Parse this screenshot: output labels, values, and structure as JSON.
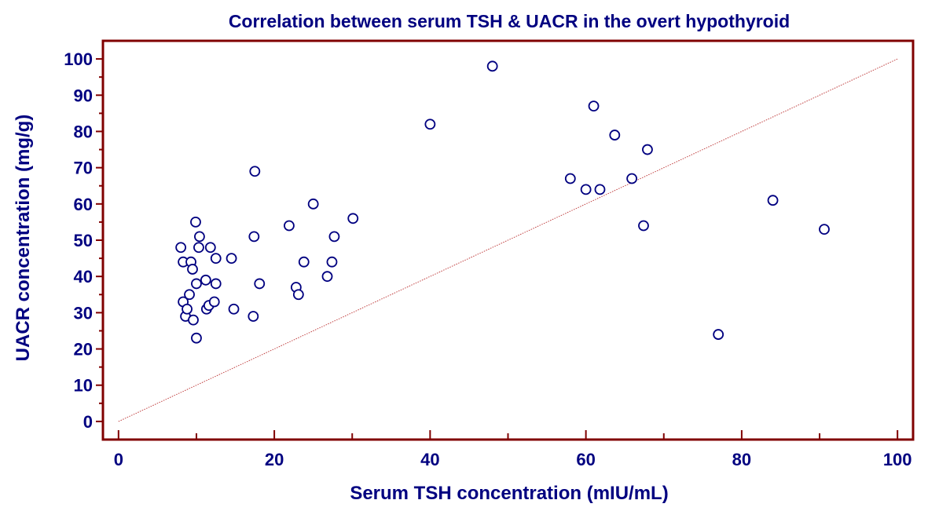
{
  "chart_data": {
    "type": "scatter",
    "title": "Correlation between serum TSH & UACR in the overt hypothyroid",
    "xlabel": "Serum TSH concentration (mIU/mL)",
    "ylabel": "UACR concentration (mg/g)",
    "xlim": [
      -2,
      102
    ],
    "ylim": [
      -5,
      105
    ],
    "x_ticks": [
      0,
      20,
      40,
      60,
      80,
      100
    ],
    "y_ticks": [
      0,
      10,
      20,
      30,
      40,
      50,
      60,
      70,
      80,
      90,
      100
    ],
    "grid": false,
    "legend": "none",
    "reference_line": {
      "from": [
        0,
        0
      ],
      "to": [
        100,
        100
      ],
      "style": "dotted"
    },
    "colors": {
      "axes": "#800000",
      "text": "#000080",
      "markers": "#000080",
      "reference_line": "#c04040"
    },
    "series": [
      {
        "points": [
          {
            "x": 8.0,
            "y": 48
          },
          {
            "x": 8.3,
            "y": 44
          },
          {
            "x": 8.3,
            "y": 33
          },
          {
            "x": 8.6,
            "y": 29
          },
          {
            "x": 8.8,
            "y": 31
          },
          {
            "x": 9.1,
            "y": 35
          },
          {
            "x": 9.3,
            "y": 44
          },
          {
            "x": 9.5,
            "y": 42
          },
          {
            "x": 9.6,
            "y": 28
          },
          {
            "x": 9.9,
            "y": 55
          },
          {
            "x": 10.0,
            "y": 38
          },
          {
            "x": 10.0,
            "y": 23
          },
          {
            "x": 10.3,
            "y": 48
          },
          {
            "x": 10.4,
            "y": 51
          },
          {
            "x": 11.2,
            "y": 39
          },
          {
            "x": 11.3,
            "y": 31
          },
          {
            "x": 11.6,
            "y": 32
          },
          {
            "x": 11.8,
            "y": 48
          },
          {
            "x": 12.3,
            "y": 33
          },
          {
            "x": 12.5,
            "y": 45
          },
          {
            "x": 12.5,
            "y": 38
          },
          {
            "x": 14.5,
            "y": 45
          },
          {
            "x": 14.8,
            "y": 31
          },
          {
            "x": 17.3,
            "y": 29
          },
          {
            "x": 17.4,
            "y": 51
          },
          {
            "x": 17.5,
            "y": 69
          },
          {
            "x": 18.1,
            "y": 38
          },
          {
            "x": 21.9,
            "y": 54
          },
          {
            "x": 22.8,
            "y": 37
          },
          {
            "x": 23.1,
            "y": 35
          },
          {
            "x": 23.8,
            "y": 44
          },
          {
            "x": 25.0,
            "y": 60
          },
          {
            "x": 26.8,
            "y": 40
          },
          {
            "x": 27.4,
            "y": 44
          },
          {
            "x": 27.7,
            "y": 51
          },
          {
            "x": 30.1,
            "y": 56
          },
          {
            "x": 40.0,
            "y": 82
          },
          {
            "x": 48.0,
            "y": 98
          },
          {
            "x": 58.0,
            "y": 67
          },
          {
            "x": 60.0,
            "y": 64
          },
          {
            "x": 61.0,
            "y": 87
          },
          {
            "x": 61.8,
            "y": 64
          },
          {
            "x": 63.7,
            "y": 79
          },
          {
            "x": 65.9,
            "y": 67
          },
          {
            "x": 67.4,
            "y": 54
          },
          {
            "x": 67.9,
            "y": 75
          },
          {
            "x": 77.0,
            "y": 24
          },
          {
            "x": 84.0,
            "y": 61
          },
          {
            "x": 90.6,
            "y": 53
          }
        ]
      }
    ]
  }
}
